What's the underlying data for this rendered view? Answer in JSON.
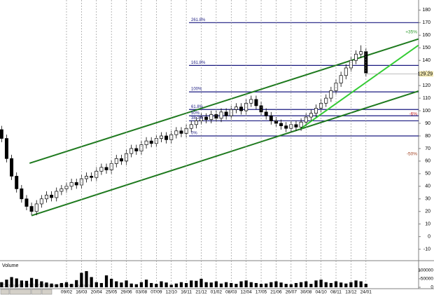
{
  "chart_data": {
    "type": "candlestick",
    "categories": [
      null,
      null,
      null,
      null,
      null,
      null,
      null,
      null,
      null,
      null,
      null,
      null,
      null,
      "09/02",
      null,
      null,
      "16/03",
      null,
      null,
      "20/04",
      null,
      null,
      "25/05",
      null,
      null,
      "29/06",
      null,
      null,
      "03/08",
      null,
      null,
      "07/09",
      null,
      null,
      "12/10",
      null,
      null,
      "16/11",
      null,
      null,
      "21/12",
      null,
      null,
      "01/02",
      null,
      null,
      "08/03",
      null,
      null,
      "12/04",
      null,
      null,
      "17/05",
      null,
      null,
      "21/06",
      null,
      null,
      "26/07",
      null,
      null,
      "30/08",
      null,
      null,
      "04/10",
      null,
      null,
      "08/11",
      null,
      null,
      "13/12",
      null,
      null,
      "24/01"
    ],
    "open": [
      85,
      78,
      62,
      48,
      38,
      30,
      24,
      20,
      26,
      30,
      33,
      31,
      36,
      38,
      40,
      43,
      41,
      46,
      48,
      47,
      52,
      55,
      53,
      58,
      62,
      60,
      66,
      70,
      68,
      73,
      76,
      74,
      78,
      80,
      77,
      81,
      84,
      82,
      86,
      89,
      92,
      95,
      93,
      97,
      94,
      99,
      96,
      101,
      103,
      100,
      106,
      109,
      104,
      99,
      96,
      92,
      90,
      88,
      86,
      89,
      87,
      91,
      95,
      98,
      102,
      106,
      110,
      116,
      122,
      128,
      134,
      140,
      145,
      147
    ],
    "high": [
      88,
      81,
      65,
      51,
      41,
      33,
      27,
      29,
      33,
      36,
      36,
      39,
      41,
      43,
      46,
      46,
      49,
      51,
      51,
      55,
      58,
      58,
      61,
      65,
      65,
      69,
      73,
      73,
      76,
      79,
      79,
      81,
      83,
      83,
      84,
      87,
      87,
      89,
      92,
      95,
      98,
      98,
      100,
      100,
      102,
      102,
      104,
      106,
      106,
      109,
      112,
      112,
      107,
      102,
      99,
      95,
      93,
      91,
      92,
      92,
      94,
      98,
      101,
      105,
      109,
      113,
      119,
      125,
      131,
      137,
      143,
      148,
      152,
      150
    ],
    "low": [
      75,
      59,
      45,
      35,
      27,
      21,
      17,
      17,
      23,
      27,
      28,
      28,
      33,
      35,
      37,
      38,
      38,
      43,
      44,
      44,
      49,
      50,
      50,
      55,
      57,
      57,
      63,
      65,
      65,
      70,
      71,
      71,
      75,
      74,
      74,
      78,
      79,
      79,
      83,
      86,
      89,
      90,
      90,
      91,
      91,
      93,
      93,
      98,
      97,
      97,
      103,
      101,
      96,
      93,
      89,
      87,
      85,
      83,
      83,
      84,
      84,
      88,
      92,
      95,
      99,
      103,
      107,
      113,
      119,
      125,
      131,
      137,
      142,
      127
    ],
    "close": [
      78,
      62,
      48,
      38,
      30,
      24,
      20,
      26,
      30,
      33,
      31,
      36,
      38,
      40,
      43,
      41,
      46,
      48,
      47,
      52,
      55,
      53,
      58,
      62,
      60,
      66,
      70,
      68,
      73,
      76,
      74,
      78,
      80,
      77,
      81,
      84,
      82,
      86,
      89,
      92,
      95,
      93,
      97,
      94,
      99,
      96,
      101,
      103,
      100,
      106,
      109,
      104,
      99,
      96,
      92,
      90,
      88,
      86,
      89,
      87,
      91,
      95,
      98,
      102,
      106,
      110,
      116,
      122,
      128,
      134,
      140,
      145,
      147,
      130
    ],
    "up_color": "#ffffff",
    "down_color": "#000000",
    "ylim": [
      -18,
      188
    ],
    "yticks": [
      -10,
      0,
      10,
      20,
      30,
      40,
      50,
      60,
      70,
      80,
      90,
      100,
      110,
      120,
      130,
      140,
      150,
      160,
      170,
      180
    ],
    "last_price": 129.29,
    "fib_levels": [
      {
        "label": "261.8%",
        "value": 170
      },
      {
        "label": "161.8%",
        "value": 136
      },
      {
        "label": "100%",
        "value": 115
      },
      {
        "label": "61.8%",
        "value": 101
      },
      {
        "label": "50%",
        "value": 96
      },
      {
        "label": "38.2%",
        "value": 92
      },
      {
        "label": "0%",
        "value": 80
      }
    ],
    "fib_color": "#1a1a80",
    "trendlines": [
      {
        "color": "#1e7a1e",
        "x": [
          5.6,
          83.5
        ],
        "values": [
          58.3,
          157
        ]
      },
      {
        "color": "#1e7a1e",
        "x": [
          6,
          83.5
        ],
        "values": [
          16.7,
          115.6
        ]
      },
      {
        "color": "#33cc33",
        "x": [
          60,
          83.5
        ],
        "values": [
          86,
          152
        ]
      }
    ],
    "annotations": [
      {
        "text": "+35%",
        "color": "#2a9a2a"
      },
      {
        "text": "-6%",
        "color": "#c02020"
      },
      {
        "text": "-50%",
        "color": "#a04020"
      }
    ],
    "volume_label": "Volume",
    "volume": [
      30000,
      45000,
      60000,
      52000,
      40000,
      38000,
      55000,
      48000,
      35000,
      28000,
      22000,
      18000,
      25000,
      30000,
      20000,
      42000,
      85000,
      95000,
      60000,
      30000,
      25000,
      70000,
      50000,
      35000,
      28000,
      40000,
      22000,
      18000,
      30000,
      45000,
      25000,
      20000,
      35000,
      28000,
      15000,
      22000,
      30000,
      25000,
      40000,
      38000,
      50000,
      30000,
      28000,
      35000,
      22000,
      30000,
      25000,
      20000,
      35000,
      40000,
      30000,
      25000,
      20000,
      22000,
      30000,
      35000,
      28000,
      20000,
      18000,
      25000,
      30000,
      35000,
      20000,
      40000,
      45000,
      30000,
      25000,
      35000,
      28000,
      22000,
      30000,
      40000,
      35000,
      20000
    ],
    "volume_color": "#000000",
    "volume_ylim": [
      0,
      140000
    ],
    "volume_yticks": [
      0,
      50000,
      100000
    ],
    "copyright": "Copyright © 2003-2009 Spread Market Systems",
    "grid": true
  }
}
